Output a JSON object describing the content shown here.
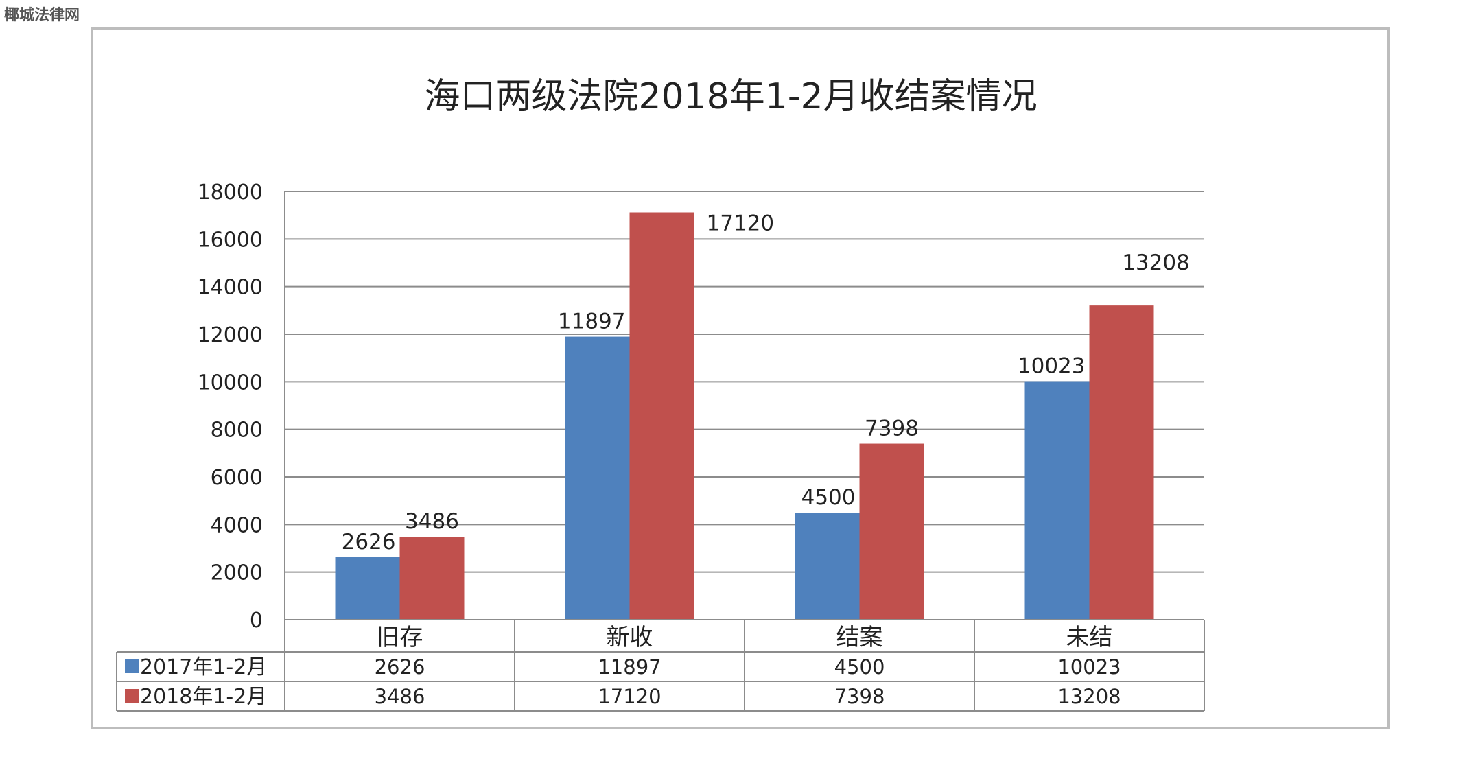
{
  "watermark": "椰城法律网",
  "chart_data": {
    "type": "bar",
    "title": "海口两级法院2018年1-2月收结案情况",
    "xlabel": "",
    "ylabel": "",
    "ylim": [
      0,
      18000
    ],
    "yticks": [
      0,
      2000,
      4000,
      6000,
      8000,
      10000,
      12000,
      14000,
      16000,
      18000
    ],
    "grid": true,
    "legend": "data-table-left",
    "categories": [
      "旧存",
      "新收",
      "结案",
      "未结"
    ],
    "series": [
      {
        "name": "2017年1-2月",
        "color": "#4f81bd",
        "values": [
          2626,
          11897,
          4500,
          10023
        ]
      },
      {
        "name": "2018年1-2月",
        "color": "#c0504d",
        "values": [
          3486,
          17120,
          7398,
          13208
        ]
      }
    ]
  }
}
